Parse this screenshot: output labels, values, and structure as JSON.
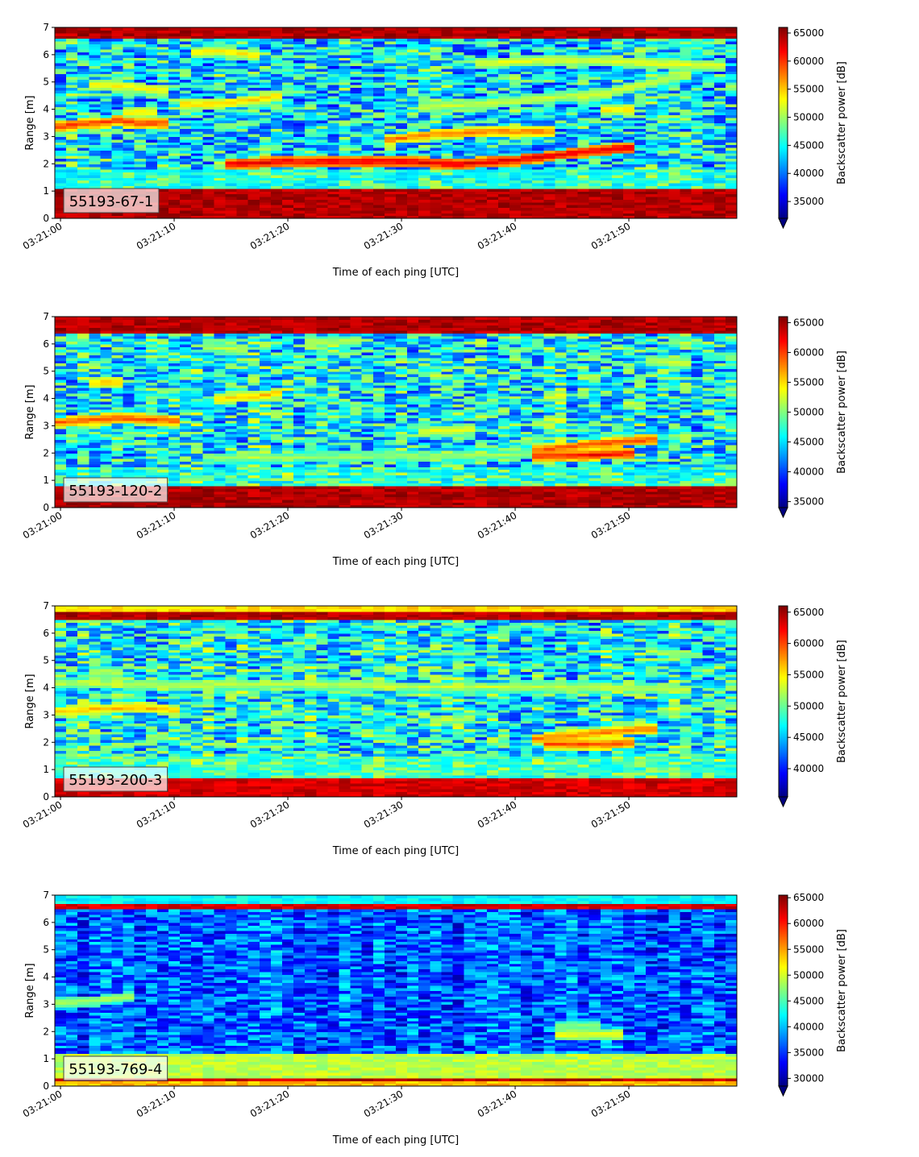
{
  "figure": {
    "xlabel": "Time of each ping [UTC]",
    "ylabel": "Range [m]",
    "colorbar_label": "Backscatter power [dB]"
  },
  "chart_data": [
    {
      "type": "heatmap",
      "label": "55193-67-1",
      "xlabel": "Time of each ping [UTC]",
      "ylabel": "Range [m]",
      "x_range_seconds_after_03_21_00": [
        -0.5,
        59.5
      ],
      "xticks": [
        "03:21:00",
        "03:21:10",
        "03:21:20",
        "03:21:30",
        "03:21:40",
        "03:21:50"
      ],
      "ylim": [
        0,
        7
      ],
      "yticks": [
        0,
        1,
        2,
        3,
        4,
        5,
        6,
        7
      ],
      "colormap": "jet",
      "colorbar": {
        "label": "Backscatter power [dB]",
        "vmin": 32000,
        "vmax": 66000,
        "ticks": [
          35000,
          40000,
          45000,
          50000,
          55000,
          60000,
          65000
        ],
        "extend": "min"
      },
      "features": [
        {
          "kind": "band",
          "range_from": 0.0,
          "range_to": 1.15,
          "level": 66000
        },
        {
          "kind": "band",
          "range_from": 6.6,
          "range_to": 7.0,
          "level": 66000
        },
        {
          "kind": "band",
          "range_from": 1.1,
          "range_to": 1.8,
          "level": 46000
        },
        {
          "kind": "trace",
          "points": [
            [
              0,
              3.4
            ],
            [
              3,
              3.5
            ],
            [
              5,
              3.6
            ],
            [
              7,
              3.5
            ],
            [
              9,
              3.5
            ]
          ],
          "level": 60000
        },
        {
          "kind": "trace",
          "points": [
            [
              3,
              4.9
            ],
            [
              6,
              4.85
            ],
            [
              9,
              4.7
            ]
          ],
          "level": 54000
        },
        {
          "kind": "trace",
          "points": [
            [
              6,
              3.9
            ],
            [
              8,
              3.9
            ]
          ],
          "level": 54000
        },
        {
          "kind": "trace",
          "points": [
            [
              11,
              4.2
            ],
            [
              14,
              4.2
            ],
            [
              17,
              4.35
            ],
            [
              19,
              4.5
            ]
          ],
          "level": 55000
        },
        {
          "kind": "trace",
          "points": [
            [
              12,
              6.1
            ],
            [
              14,
              6.15
            ],
            [
              17,
              6.0
            ]
          ],
          "level": 54000
        },
        {
          "kind": "trace",
          "points": [
            [
              15,
              2.0
            ],
            [
              20,
              2.1
            ],
            [
              25,
              2.1
            ],
            [
              30,
              2.1
            ],
            [
              35,
              2.0
            ],
            [
              40,
              2.15
            ],
            [
              45,
              2.4
            ],
            [
              50,
              2.6
            ]
          ],
          "level": 63000
        },
        {
          "kind": "trace",
          "points": [
            [
              29,
              2.9
            ],
            [
              33,
              3.1
            ],
            [
              38,
              3.2
            ],
            [
              43,
              3.2
            ]
          ],
          "level": 58000
        },
        {
          "kind": "trace",
          "points": [
            [
              32,
              4.1
            ],
            [
              37,
              4.2
            ],
            [
              42,
              4.4
            ],
            [
              48,
              4.6
            ],
            [
              55,
              5.3
            ]
          ],
          "level": 52000
        },
        {
          "kind": "trace",
          "points": [
            [
              37,
              5.7
            ],
            [
              42,
              5.8
            ],
            [
              47,
              5.8
            ],
            [
              52,
              5.7
            ],
            [
              58,
              5.6
            ]
          ],
          "level": 53000
        },
        {
          "kind": "trace",
          "points": [
            [
              49,
              4.0
            ]
          ],
          "level": 55000
        }
      ]
    },
    {
      "type": "heatmap",
      "label": "55193-120-2",
      "xlabel": "Time of each ping [UTC]",
      "ylabel": "Range [m]",
      "x_range_seconds_after_03_21_00": [
        -0.5,
        59.5
      ],
      "xticks": [
        "03:21:00",
        "03:21:10",
        "03:21:20",
        "03:21:30",
        "03:21:40",
        "03:21:50"
      ],
      "ylim": [
        0,
        7
      ],
      "yticks": [
        0,
        1,
        2,
        3,
        4,
        5,
        6,
        7
      ],
      "colormap": "jet",
      "colorbar": {
        "label": "Backscatter power [dB]",
        "vmin": 34000,
        "vmax": 66000,
        "ticks": [
          35000,
          40000,
          45000,
          50000,
          55000,
          60000,
          65000
        ],
        "extend": "min"
      },
      "features": [
        {
          "kind": "band",
          "range_from": 0.0,
          "range_to": 0.8,
          "level": 66000
        },
        {
          "kind": "band",
          "range_from": 6.4,
          "range_to": 7.0,
          "level": 66000
        },
        {
          "kind": "band",
          "range_from": 0.8,
          "range_to": 1.5,
          "level": 47000
        },
        {
          "kind": "trace",
          "points": [
            [
              0,
              3.15
            ],
            [
              3,
              3.25
            ],
            [
              5,
              3.3
            ],
            [
              8,
              3.25
            ],
            [
              10,
              3.2
            ]
          ],
          "level": 60000
        },
        {
          "kind": "trace",
          "points": [
            [
              4,
              4.6
            ]
          ],
          "level": 56000
        },
        {
          "kind": "trace",
          "points": [
            [
              14,
              4.0
            ],
            [
              17,
              4.1
            ],
            [
              19,
              4.2
            ]
          ],
          "level": 56000
        },
        {
          "kind": "trace",
          "points": [
            [
              13,
              5.9
            ],
            [
              16,
              5.8
            ]
          ],
          "level": 52000
        },
        {
          "kind": "trace",
          "points": [
            [
              22,
              6.1
            ],
            [
              26,
              6.1
            ]
          ],
          "level": 52000
        },
        {
          "kind": "trace",
          "points": [
            [
              13,
              1.85
            ],
            [
              20,
              1.85
            ],
            [
              30,
              1.9
            ],
            [
              40,
              1.95
            ],
            [
              50,
              2.0
            ]
          ],
          "level": 51000
        },
        {
          "kind": "trace",
          "points": [
            [
              32,
              2.8
            ],
            [
              36,
              2.9
            ]
          ],
          "level": 54000
        },
        {
          "kind": "trace",
          "points": [
            [
              42,
              2.1
            ],
            [
              46,
              2.3
            ],
            [
              50,
              2.45
            ],
            [
              52,
              2.5
            ]
          ],
          "level": 60000
        },
        {
          "kind": "trace",
          "points": [
            [
              42,
              1.9
            ],
            [
              47,
              1.95
            ],
            [
              50,
              2.0
            ]
          ],
          "level": 62000
        },
        {
          "kind": "trace",
          "points": [
            [
              50,
              3.8
            ],
            [
              52,
              5.4
            ],
            [
              55,
              5.3
            ]
          ],
          "level": 53000
        }
      ]
    },
    {
      "type": "heatmap",
      "label": "55193-200-3",
      "xlabel": "Time of each ping [UTC]",
      "ylabel": "Range [m]",
      "x_range_seconds_after_03_21_00": [
        -0.5,
        59.5
      ],
      "xticks": [
        "03:21:00",
        "03:21:10",
        "03:21:20",
        "03:21:30",
        "03:21:40",
        "03:21:50"
      ],
      "ylim": [
        0,
        7
      ],
      "yticks": [
        0,
        1,
        2,
        3,
        4,
        5,
        6,
        7
      ],
      "colormap": "jet",
      "colorbar": {
        "label": "Backscatter power [dB]",
        "vmin": 35500,
        "vmax": 66000,
        "ticks": [
          40000,
          45000,
          50000,
          55000,
          60000,
          65000
        ],
        "extend": "min"
      },
      "features": [
        {
          "kind": "band",
          "range_from": 0.0,
          "range_to": 0.75,
          "level": 65000
        },
        {
          "kind": "band",
          "range_from": 0.75,
          "range_to": 1.5,
          "level": 49000
        },
        {
          "kind": "band",
          "range_from": 6.5,
          "range_to": 6.85,
          "level": 66000
        },
        {
          "kind": "band",
          "range_from": 6.85,
          "range_to": 7.0,
          "level": 57000
        },
        {
          "kind": "trace",
          "points": [
            [
              0,
              4.2
            ],
            [
              10,
              4.1
            ],
            [
              20,
              4.15
            ],
            [
              30,
              4.05
            ],
            [
              40,
              4.05
            ],
            [
              50,
              4.0
            ],
            [
              55,
              3.95
            ]
          ],
          "level": 53000
        },
        {
          "kind": "trace",
          "points": [
            [
              0,
              3.15
            ],
            [
              4,
              3.25
            ],
            [
              7,
              3.3
            ],
            [
              10,
              3.2
            ]
          ],
          "level": 57000
        },
        {
          "kind": "trace",
          "points": [
            [
              4,
              4.6
            ]
          ],
          "level": 53000
        },
        {
          "kind": "trace",
          "points": [
            [
              33,
              2.8
            ],
            [
              36,
              2.9
            ]
          ],
          "level": 53000
        },
        {
          "kind": "trace",
          "points": [
            [
              42,
              2.15
            ],
            [
              46,
              2.3
            ],
            [
              50,
              2.45
            ],
            [
              52,
              2.5
            ]
          ],
          "level": 59000
        },
        {
          "kind": "trace",
          "points": [
            [
              43,
              1.95
            ],
            [
              48,
              1.95
            ],
            [
              50,
              2.0
            ]
          ],
          "level": 60000
        },
        {
          "kind": "trace",
          "points": [
            [
              52,
              5.4
            ],
            [
              55,
              5.2
            ]
          ],
          "level": 51000
        }
      ]
    },
    {
      "type": "heatmap",
      "label": "55193-769-4",
      "xlabel": "Time of each ping [UTC]",
      "ylabel": "Range [m]",
      "x_range_seconds_after_03_21_00": [
        -0.5,
        59.5
      ],
      "xticks": [
        "03:21:00",
        "03:21:10",
        "03:21:20",
        "03:21:30",
        "03:21:40",
        "03:21:50"
      ],
      "ylim": [
        0,
        7
      ],
      "yticks": [
        0,
        1,
        2,
        3,
        4,
        5,
        6,
        7
      ],
      "colormap": "jet",
      "colorbar": {
        "label": "Backscatter power [dB]",
        "vmin": 28500,
        "vmax": 65500,
        "ticks": [
          30000,
          35000,
          40000,
          45000,
          50000,
          55000,
          60000,
          65000
        ],
        "extend": "min"
      },
      "features": [
        {
          "kind": "band",
          "range_from": 0.0,
          "range_to": 0.18,
          "level": 56000
        },
        {
          "kind": "band",
          "range_from": 0.18,
          "range_to": 0.35,
          "level": 65000
        },
        {
          "kind": "band",
          "range_from": 0.35,
          "range_to": 1.2,
          "level": 51000
        },
        {
          "kind": "band",
          "range_from": 6.5,
          "range_to": 6.7,
          "level": 64000
        },
        {
          "kind": "band",
          "range_from": 6.7,
          "range_to": 7.0,
          "level": 44000
        },
        {
          "kind": "trace",
          "points": [
            [
              0,
              3.1
            ],
            [
              3,
              3.15
            ],
            [
              6,
              3.3
            ]
          ],
          "level": 49000
        },
        {
          "kind": "trace",
          "points": [
            [
              44,
              2.2
            ],
            [
              47,
              2.25
            ]
          ],
          "level": 48000
        },
        {
          "kind": "trace",
          "points": [
            [
              44,
              1.9
            ],
            [
              49,
              1.9
            ]
          ],
          "level": 52000
        }
      ]
    }
  ]
}
